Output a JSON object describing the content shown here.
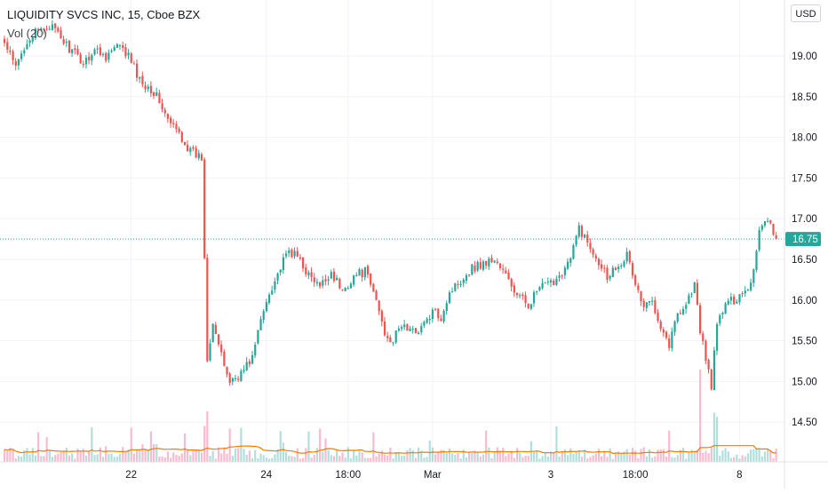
{
  "header": {
    "symbol_line": "LIQUIDITY SVCS INC, 15, Cboe BZX",
    "volume_indicator": "Vol (20)",
    "currency_button": "USD"
  },
  "colors": {
    "up": "#26a69a",
    "down": "#ef5350",
    "up_volume": "#b2dfdb",
    "down_volume": "#f8bbd0",
    "volume_ma": "#f57c00",
    "last_price_badge": "#26a69a",
    "grid": "#f0f3fa",
    "axis_text": "#131722"
  },
  "chart_data": {
    "type": "candlestick",
    "title": "LIQUIDITY SVCS INC, 15, Cboe BZX",
    "currency": "USD",
    "ylim": [
      14.1,
      19.6
    ],
    "y_ticks": [
      "19.00",
      "18.50",
      "18.00",
      "17.50",
      "17.00",
      "16.50",
      "16.00",
      "15.50",
      "15.00",
      "14.50"
    ],
    "x_ticks": [
      "22",
      "24",
      "18:00",
      "Mar",
      "3",
      "18:00",
      "8"
    ],
    "last_price": "16.75",
    "grid": true,
    "price_anchors": [
      [
        0,
        19.15
      ],
      [
        4,
        18.85
      ],
      [
        8,
        19.2
      ],
      [
        12,
        19.3
      ],
      [
        16,
        19.38
      ],
      [
        20,
        19.22
      ],
      [
        24,
        19.05
      ],
      [
        28,
        18.92
      ],
      [
        32,
        19.08
      ],
      [
        36,
        19.0
      ],
      [
        40,
        19.12
      ],
      [
        44,
        19.0
      ],
      [
        48,
        18.7
      ],
      [
        52,
        18.6
      ],
      [
        55,
        18.45
      ],
      [
        58,
        18.2
      ],
      [
        62,
        18.05
      ],
      [
        66,
        17.82
      ],
      [
        70,
        17.75
      ],
      [
        72,
        15.3
      ],
      [
        74,
        15.75
      ],
      [
        77,
        15.3
      ],
      [
        80,
        15.0
      ],
      [
        84,
        15.1
      ],
      [
        88,
        15.3
      ],
      [
        91,
        15.75
      ],
      [
        94,
        16.1
      ],
      [
        98,
        16.4
      ],
      [
        101,
        16.6
      ],
      [
        105,
        16.5
      ],
      [
        108,
        16.3
      ],
      [
        112,
        16.15
      ],
      [
        116,
        16.35
      ],
      [
        120,
        16.1
      ],
      [
        124,
        16.3
      ],
      [
        128,
        16.35
      ],
      [
        132,
        16.0
      ],
      [
        135,
        15.6
      ],
      [
        138,
        15.5
      ],
      [
        141,
        15.7
      ],
      [
        145,
        15.6
      ],
      [
        149,
        15.7
      ],
      [
        152,
        15.85
      ],
      [
        155,
        15.8
      ],
      [
        158,
        16.1
      ],
      [
        162,
        16.25
      ],
      [
        166,
        16.4
      ],
      [
        170,
        16.45
      ],
      [
        174,
        16.5
      ],
      [
        178,
        16.3
      ],
      [
        182,
        16.05
      ],
      [
        186,
        15.95
      ],
      [
        190,
        16.15
      ],
      [
        194,
        16.2
      ],
      [
        198,
        16.35
      ],
      [
        201,
        16.5
      ],
      [
        204,
        16.9
      ],
      [
        207,
        16.7
      ],
      [
        210,
        16.55
      ],
      [
        214,
        16.3
      ],
      [
        218,
        16.45
      ],
      [
        221,
        16.55
      ],
      [
        224,
        16.2
      ],
      [
        227,
        15.9
      ],
      [
        230,
        16.0
      ],
      [
        233,
        15.7
      ],
      [
        236,
        15.45
      ],
      [
        239,
        15.85
      ],
      [
        242,
        15.95
      ],
      [
        245,
        16.2
      ],
      [
        247,
        15.6
      ],
      [
        249,
        15.3
      ],
      [
        251,
        14.95
      ],
      [
        253,
        15.7
      ],
      [
        256,
        15.95
      ],
      [
        259,
        16.0
      ],
      [
        262,
        16.1
      ],
      [
        265,
        16.2
      ],
      [
        268,
        16.85
      ],
      [
        270,
        17.0
      ],
      [
        272,
        16.95
      ],
      [
        274,
        16.75
      ]
    ],
    "volume_levels": {
      "typical": 30000,
      "ma_range": [
        20000,
        50000
      ],
      "max_spike": 300000
    }
  }
}
